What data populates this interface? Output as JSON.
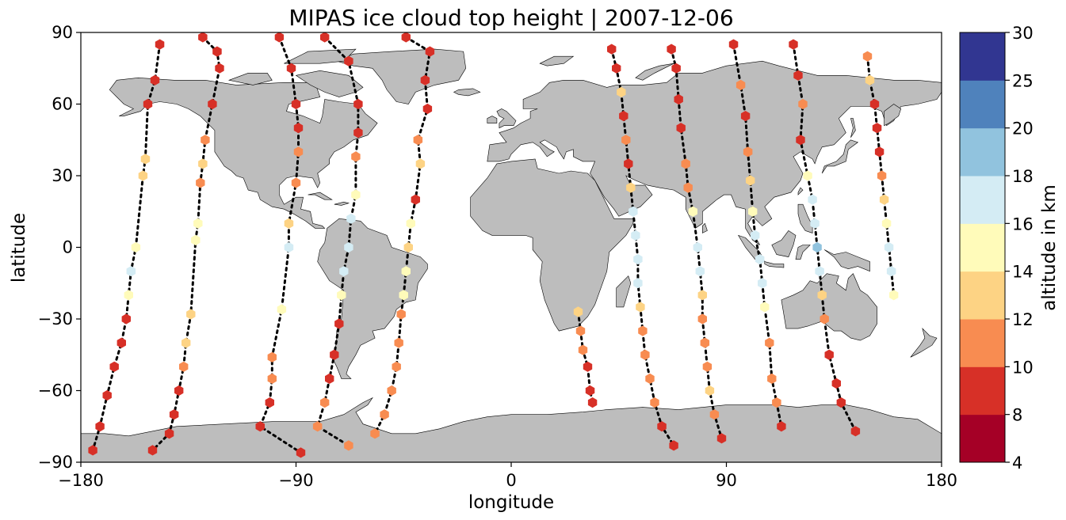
{
  "chart_data": {
    "type": "scatter",
    "title": "MIPAS ice cloud top height | 2007-12-06",
    "xlabel": "longitude",
    "ylabel": "latitude",
    "xlim": [
      -180,
      180
    ],
    "ylim": [
      -90,
      90
    ],
    "xticks": [
      -180,
      -90,
      0,
      90,
      180
    ],
    "xtick_labels": [
      "−180",
      "−90",
      "0",
      "90",
      "180"
    ],
    "yticks": [
      90,
      60,
      30,
      0,
      -30,
      -60,
      -90
    ],
    "ytick_labels": [
      "90",
      "60",
      "30",
      "0",
      "−30",
      "−60",
      "−90"
    ],
    "grid": false,
    "basemap": "world land outline (gray)",
    "colorbar": {
      "label": "altitude in km",
      "boundaries": [
        4,
        8,
        10,
        12,
        14,
        16,
        18,
        20,
        25,
        30
      ],
      "tick_labels": [
        "4",
        "8",
        "10",
        "12",
        "14",
        "16",
        "18",
        "20",
        "25",
        "30"
      ],
      "colors": [
        "#a50026",
        "#d73027",
        "#f46d43",
        "#fdae61",
        "#fee090",
        "#ffffbf",
        "#e0f3f8",
        "#abd9e9",
        "#74add1",
        "#4575b4",
        "#313695"
      ],
      "bin_colors": [
        "#a50026",
        "#d73027",
        "#f88c51",
        "#fdd384",
        "#fffbba",
        "#d4ecf4",
        "#91c3de",
        "#4f82bc",
        "#313691"
      ]
    },
    "tracks": [
      {
        "lat": [
          85,
          70,
          60,
          37,
          30,
          0,
          -10,
          -20,
          -30,
          -40,
          -50,
          -62,
          -75,
          -85
        ],
        "lon": [
          -147,
          -149,
          -152,
          -153,
          -154,
          -157,
          -159,
          -160,
          -161,
          -163,
          -166,
          -169,
          -172,
          -175
        ],
        "alt": [
          8,
          8,
          8,
          12,
          12,
          14,
          16,
          14,
          8,
          8,
          8,
          8,
          8,
          8
        ]
      },
      {
        "lat": [
          88,
          82,
          75,
          60,
          45,
          35,
          27,
          10,
          3,
          -28,
          -40,
          -50,
          -60,
          -70,
          -78,
          -85
        ],
        "lon": [
          -129,
          -123,
          -122,
          -125,
          -128,
          -129,
          -130,
          -131,
          -132,
          -134,
          -136,
          -137,
          -139,
          -141,
          -143,
          -150
        ],
        "alt": [
          8,
          8,
          8,
          8,
          10,
          12,
          10,
          14,
          14,
          12,
          12,
          10,
          8,
          8,
          8,
          9
        ]
      },
      {
        "lat": [
          88,
          75,
          60,
          50,
          40,
          27,
          10,
          0,
          -26,
          -46,
          -55,
          -65,
          -75,
          -86
        ],
        "lon": [
          -97,
          -92,
          -90,
          -89,
          -89,
          -90,
          -93,
          -93,
          -96,
          -100,
          -100,
          -101,
          -105,
          -88
        ],
        "alt": [
          8,
          8,
          8,
          8,
          10,
          10,
          12,
          16,
          14,
          10,
          10,
          8,
          8,
          8
        ]
      },
      {
        "lat": [
          88,
          78,
          60,
          48,
          38,
          22,
          12,
          0,
          -10,
          -20,
          -32,
          -45,
          -55,
          -65,
          -75,
          -83
        ],
        "lon": [
          -78,
          -68,
          -64,
          -64,
          -65,
          -65,
          -67,
          -68,
          -70,
          -71,
          -72,
          -74,
          -76,
          -78,
          -81,
          -68
        ],
        "alt": [
          8,
          8,
          8,
          8,
          10,
          14,
          16,
          16,
          16,
          14,
          8,
          8,
          8,
          10,
          10,
          10
        ],
        "note": ""
      },
      {
        "lat": [
          88,
          82,
          70,
          58,
          45,
          35,
          20,
          10,
          0,
          -10,
          -20,
          -28,
          -40,
          -50,
          -60,
          -70,
          -78
        ],
        "lon": [
          -44,
          -34,
          -36,
          -35,
          -39,
          -38,
          -40,
          -42,
          -43,
          -44,
          -45,
          -46,
          -47,
          -48,
          -50,
          -53,
          -57
        ],
        "alt": [
          8,
          8,
          8,
          8,
          10,
          12,
          8,
          14,
          12,
          14,
          14,
          10,
          10,
          10,
          10,
          10,
          10
        ]
      },
      {
        "lat": [
          -27,
          -35,
          -43,
          -50,
          -60,
          -65
        ],
        "lon": [
          28,
          29,
          30,
          32,
          33,
          34
        ],
        "alt": [
          12,
          10,
          10,
          8,
          8,
          8
        ]
      },
      {
        "lat": [
          83,
          75,
          65,
          55,
          45,
          35,
          25,
          15,
          5,
          -5,
          -15,
          -25,
          -35,
          -45,
          -55,
          -65,
          -75,
          -83
        ],
        "lon": [
          42,
          44,
          46,
          47,
          48,
          49,
          50,
          51,
          52,
          53,
          53,
          54,
          55,
          56,
          58,
          60,
          63,
          68
        ],
        "alt": [
          8,
          8,
          12,
          8,
          10,
          8,
          12,
          16,
          16,
          16,
          16,
          12,
          10,
          10,
          10,
          10,
          8,
          8
        ]
      },
      {
        "lat": [
          83,
          75,
          62,
          50,
          35,
          25,
          15,
          0,
          -10,
          -20,
          -30,
          -40,
          -50,
          -60,
          -70,
          -80
        ],
        "lon": [
          67,
          69,
          70,
          71,
          73,
          74,
          76,
          78,
          79,
          80,
          80,
          81,
          82,
          83,
          85,
          88
        ],
        "alt": [
          9,
          8,
          8,
          8,
          10,
          10,
          14,
          16,
          16,
          12,
          10,
          10,
          10,
          12,
          10,
          8
        ]
      },
      {
        "lat": [
          85,
          68,
          55,
          40,
          28,
          15,
          5,
          -5,
          -15,
          -25,
          -40,
          -55,
          -65,
          -75
        ],
        "lon": [
          93,
          96,
          98,
          99,
          100,
          101,
          102,
          104,
          105,
          106,
          108,
          109,
          111,
          113
        ],
        "alt": [
          8,
          10,
          8,
          10,
          12,
          14,
          16,
          16,
          16,
          14,
          10,
          10,
          10,
          9
        ]
      },
      {
        "lat": [
          85,
          72,
          60,
          45,
          30,
          20,
          10,
          0,
          -10,
          -20,
          -30,
          -45,
          -57,
          -65,
          -77
        ],
        "lon": [
          118,
          120,
          122,
          121,
          124,
          126,
          127,
          128,
          129,
          130,
          131,
          133,
          136,
          138,
          144
        ],
        "alt": [
          8,
          8,
          10,
          8,
          14,
          16,
          16,
          18,
          16,
          12,
          10,
          8,
          8,
          8,
          8
        ]
      },
      {
        "lat": [
          80,
          70,
          60,
          50,
          40,
          30,
          20,
          10,
          0,
          -10,
          -20
        ],
        "lon": [
          149,
          150,
          152,
          153,
          154,
          155,
          156,
          157,
          158,
          159,
          160
        ],
        "alt": [
          10,
          12,
          8,
          8,
          8,
          10,
          12,
          14,
          16,
          16,
          14
        ]
      }
    ]
  }
}
